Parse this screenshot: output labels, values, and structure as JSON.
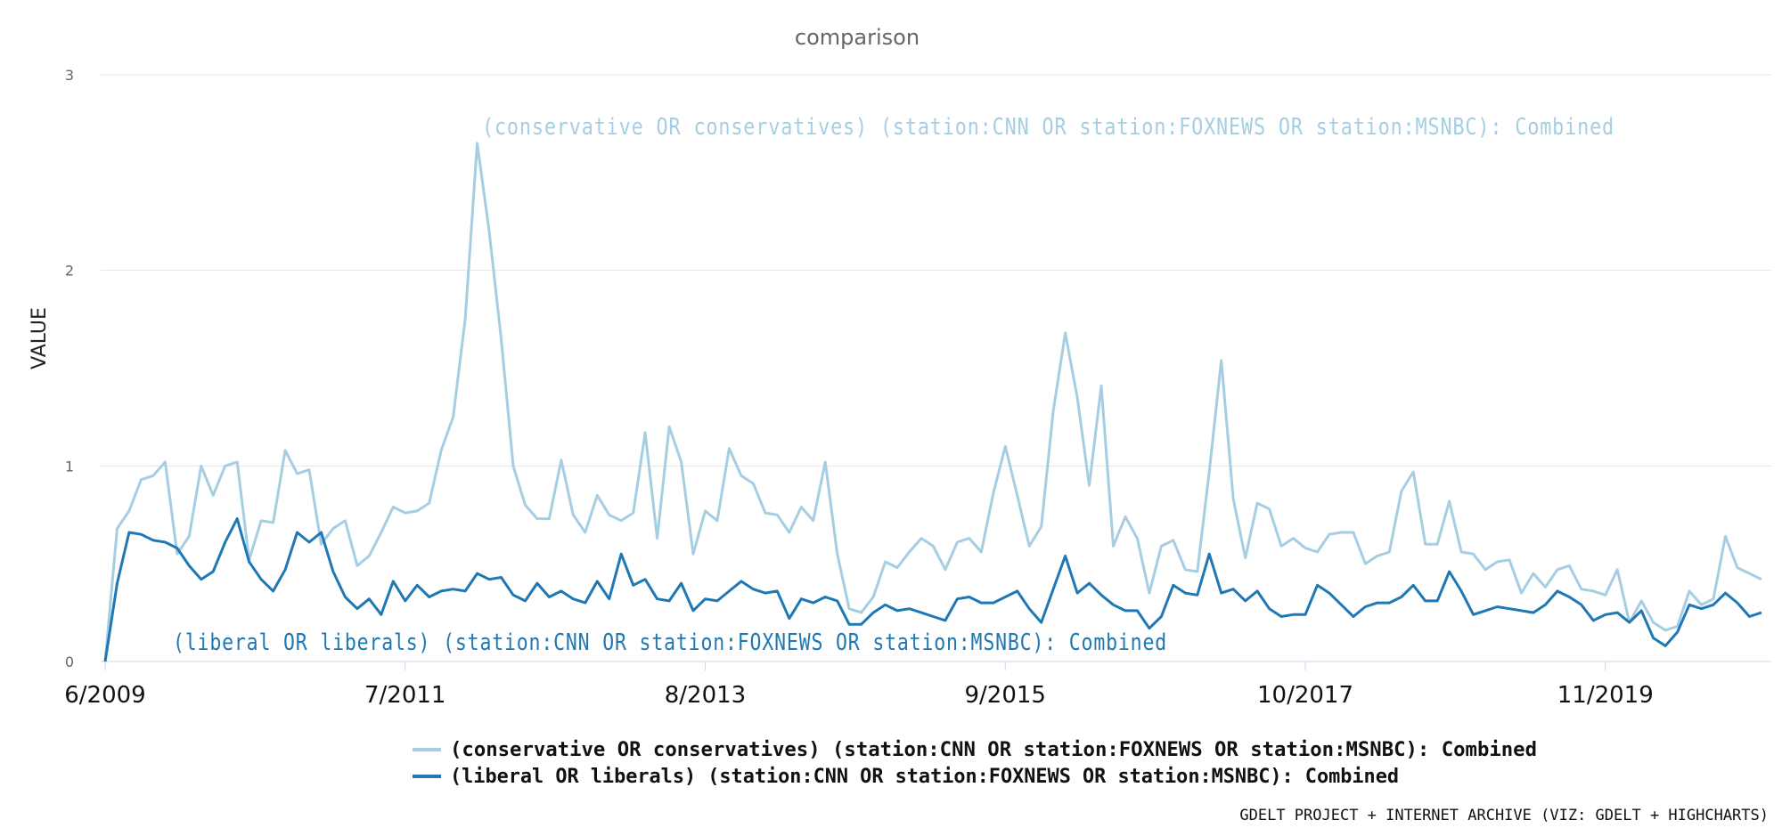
{
  "chart_data": {
    "type": "line",
    "title": "comparison",
    "ylabel": "VALUE",
    "ylim": [
      0,
      3
    ],
    "yticks": [
      "0",
      "1",
      "2",
      "3"
    ],
    "x_start": "2009-06",
    "x_step": "month",
    "xtick_labels": [
      {
        "label": "6/2009",
        "month_index": 0
      },
      {
        "label": "7/2011",
        "month_index": 25
      },
      {
        "label": "8/2013",
        "month_index": 50
      },
      {
        "label": "9/2015",
        "month_index": 75
      },
      {
        "label": "10/2017",
        "month_index": 100
      },
      {
        "label": "11/2019",
        "month_index": 125
      }
    ],
    "grid": true,
    "legend_position": "bottom-center",
    "series": [
      {
        "name": "(conservative OR conservatives) (station:CNN OR station:FOXNEWS OR station:MSNBC): Combined",
        "color": "#a6cee3",
        "values": [
          0.0,
          0.68,
          0.77,
          0.93,
          0.95,
          1.02,
          0.55,
          0.64,
          1.0,
          0.85,
          1.0,
          1.02,
          0.52,
          0.72,
          0.71,
          1.08,
          0.96,
          0.98,
          0.6,
          0.68,
          0.72,
          0.49,
          0.54,
          0.66,
          0.79,
          0.76,
          0.77,
          0.81,
          1.08,
          1.25,
          1.75,
          2.65,
          2.2,
          1.65,
          1.0,
          0.8,
          0.73,
          0.73,
          1.03,
          0.75,
          0.66,
          0.85,
          0.75,
          0.72,
          0.76,
          1.17,
          0.63,
          1.2,
          1.02,
          0.55,
          0.77,
          0.72,
          1.09,
          0.95,
          0.91,
          0.76,
          0.75,
          0.66,
          0.79,
          0.72,
          1.02,
          0.55,
          0.27,
          0.25,
          0.33,
          0.51,
          0.48,
          0.56,
          0.63,
          0.59,
          0.47,
          0.61,
          0.63,
          0.56,
          0.86,
          1.1,
          0.85,
          0.59,
          0.69,
          1.28,
          1.68,
          1.35,
          0.9,
          1.41,
          0.59,
          0.74,
          0.63,
          0.35,
          0.59,
          0.62,
          0.47,
          0.46,
          0.97,
          1.54,
          0.83,
          0.53,
          0.81,
          0.78,
          0.59,
          0.63,
          0.58,
          0.56,
          0.65,
          0.66,
          0.66,
          0.5,
          0.54,
          0.56,
          0.87,
          0.97,
          0.6,
          0.6,
          0.82,
          0.56,
          0.55,
          0.47,
          0.51,
          0.52,
          0.35,
          0.45,
          0.38,
          0.47,
          0.49,
          0.37,
          0.36,
          0.34,
          0.47,
          0.2,
          0.31,
          0.2,
          0.16,
          0.18,
          0.36,
          0.29,
          0.32,
          0.64,
          0.48,
          0.45,
          0.42
        ]
      },
      {
        "name": "(liberal OR liberals) (station:CNN OR station:FOXNEWS OR station:MSNBC): Combined",
        "color": "#1f78b4",
        "values": [
          0.0,
          0.4,
          0.66,
          0.65,
          0.62,
          0.61,
          0.58,
          0.49,
          0.42,
          0.46,
          0.61,
          0.73,
          0.51,
          0.42,
          0.36,
          0.47,
          0.66,
          0.61,
          0.66,
          0.46,
          0.33,
          0.27,
          0.32,
          0.24,
          0.41,
          0.31,
          0.39,
          0.33,
          0.36,
          0.37,
          0.36,
          0.45,
          0.42,
          0.43,
          0.34,
          0.31,
          0.4,
          0.33,
          0.36,
          0.32,
          0.3,
          0.41,
          0.32,
          0.55,
          0.39,
          0.42,
          0.32,
          0.31,
          0.4,
          0.26,
          0.32,
          0.31,
          0.36,
          0.41,
          0.37,
          0.35,
          0.36,
          0.22,
          0.32,
          0.3,
          0.33,
          0.31,
          0.19,
          0.19,
          0.25,
          0.29,
          0.26,
          0.27,
          0.25,
          0.23,
          0.21,
          0.32,
          0.33,
          0.3,
          0.3,
          0.33,
          0.36,
          0.27,
          0.2,
          0.37,
          0.54,
          0.35,
          0.4,
          0.34,
          0.29,
          0.26,
          0.26,
          0.17,
          0.23,
          0.39,
          0.35,
          0.34,
          0.55,
          0.35,
          0.37,
          0.31,
          0.36,
          0.27,
          0.23,
          0.24,
          0.24,
          0.39,
          0.35,
          0.29,
          0.23,
          0.28,
          0.3,
          0.3,
          0.33,
          0.39,
          0.31,
          0.31,
          0.46,
          0.36,
          0.24,
          0.26,
          0.28,
          0.27,
          0.26,
          0.25,
          0.29,
          0.36,
          0.33,
          0.29,
          0.21,
          0.24,
          0.25,
          0.2,
          0.26,
          0.12,
          0.08,
          0.15,
          0.29,
          0.27,
          0.29,
          0.35,
          0.3,
          0.23,
          0.25
        ]
      }
    ],
    "annotations": [
      {
        "text": "(conservative OR conservatives) (station:CNN OR station:FOXNEWS OR station:MSNBC): Combined",
        "series": 0
      },
      {
        "text": "(liberal OR liberals) (station:CNN OR station:FOXNEWS OR station:MSNBC): Combined",
        "series": 1
      }
    ],
    "credits": "GDELT PROJECT + INTERNET ARCHIVE (VIZ: GDELT + HIGHCHARTS)"
  }
}
